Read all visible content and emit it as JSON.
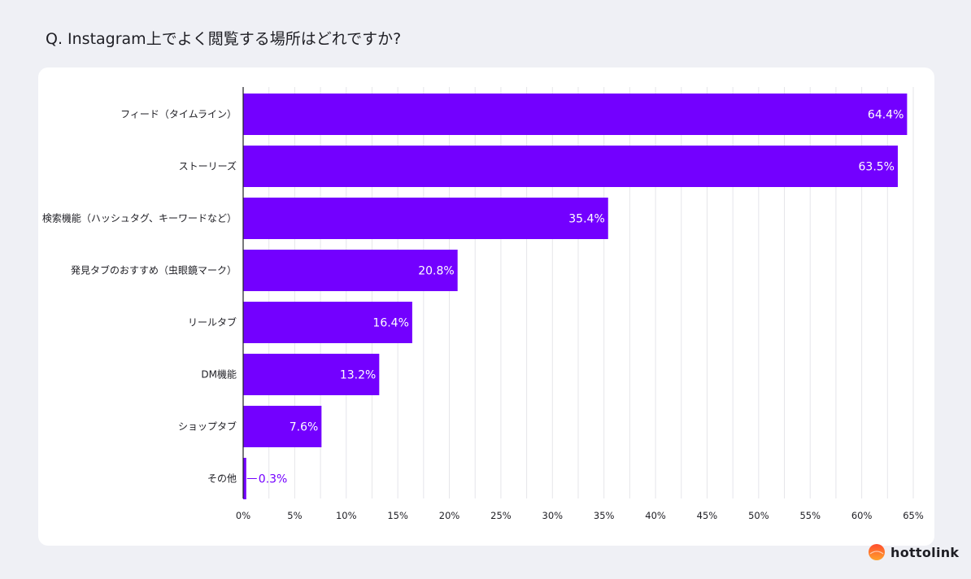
{
  "title": "Q. Instagram上でよく閲覧する場所はどれですか?",
  "brand": {
    "name": "hottolink",
    "color_top": "#ff4d2e",
    "color_bottom": "#ffa12b"
  },
  "colors": {
    "bar": "#7300ff",
    "bar_label_inside": "#ffffff",
    "bar_label_outside": "#7300ff",
    "grid": "#e6e6ea",
    "axis": "#1e1e24"
  },
  "chart_data": {
    "type": "bar",
    "orientation": "horizontal",
    "title": "Q. Instagram上でよく閲覧する場所はどれですか?",
    "xlabel": "",
    "ylabel": "",
    "categories": [
      "フィード（タイムライン）",
      "ストーリーズ",
      "検索機能（ハッシュタグ、キーワードなど）",
      "発見タブのおすすめ（虫眼鏡マーク）",
      "リールタブ",
      "DM機能",
      "ショップタブ",
      "その他"
    ],
    "values": [
      64.4,
      63.5,
      35.4,
      20.8,
      16.4,
      13.2,
      7.6,
      0.3
    ],
    "value_labels": [
      "64.4%",
      "63.5%",
      "35.4%",
      "20.8%",
      "16.4%",
      "13.2%",
      "7.6%",
      "0.3%"
    ],
    "xlim": [
      0,
      65
    ],
    "ticks": [
      0,
      5,
      10,
      15,
      20,
      25,
      30,
      35,
      40,
      45,
      50,
      55,
      60,
      65
    ],
    "tick_labels": [
      "0%",
      "5%",
      "10%",
      "15%",
      "20%",
      "25%",
      "30%",
      "35%",
      "40%",
      "45%",
      "50%",
      "55%",
      "60%",
      "65%"
    ],
    "grid": true,
    "minor_grid_step": 2.5
  }
}
